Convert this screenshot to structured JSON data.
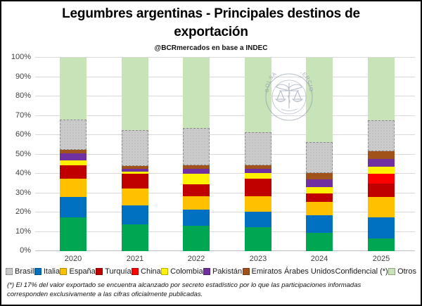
{
  "title": "Legumbres argentinas - Principales destinos de exportación",
  "subtitle": "@BCRmercados en base a INDEC",
  "footnote": "(*) El 17% del valor exportado se encuentra alcanzado por secreto estadístico por lo que las participaciones informadas corresponden exclusivamente a las cifras oficialmente publicadas.",
  "watermark": {
    "arc_text": "BOLSA DE COMERCIO DE R",
    "color": "#8D98AC"
  },
  "chart_data": {
    "type": "bar",
    "stacked": true,
    "title": "Legumbres argentinas - Principales destinos de exportación",
    "subtitle": "@BCRmercados en base a INDEC",
    "categories": [
      "2020",
      "2021",
      "2022",
      "2023",
      "2024",
      "2025"
    ],
    "y_ticks": [
      "0%",
      "10%",
      "20%",
      "30%",
      "40%",
      "50%",
      "60%",
      "70%",
      "80%",
      "90%",
      "100%"
    ],
    "ylim": [
      0,
      100
    ],
    "grid": true,
    "legend_position": "bottom",
    "unit": "%",
    "series": [
      {
        "id": "brasil",
        "name": "Brasil",
        "color": "#00A651",
        "values": [
          17.5,
          14.0,
          13.0,
          12.5,
          9.5,
          6.5
        ]
      },
      {
        "id": "italia",
        "name": "Italia",
        "color": "#0070C0",
        "values": [
          10.5,
          9.5,
          8.5,
          8.0,
          9.0,
          11.0
        ]
      },
      {
        "id": "espana",
        "name": "España",
        "color": "#FFC000",
        "values": [
          9.5,
          9.0,
          7.0,
          8.0,
          7.0,
          10.5
        ]
      },
      {
        "id": "turquia",
        "name": "Turquía",
        "color": "#C00000",
        "values": [
          7.0,
          7.5,
          6.0,
          9.0,
          4.5,
          7.0
        ]
      },
      {
        "id": "china",
        "name": "China",
        "color": "#FF0000",
        "values": [
          0,
          0,
          0,
          0,
          0,
          5.0
        ]
      },
      {
        "id": "colombia",
        "name": "Colombia",
        "color": "#FFF100",
        "values": [
          2.5,
          1.0,
          5.5,
          3.0,
          3.0,
          3.5
        ]
      },
      {
        "id": "pakistan",
        "name": "Pakistán",
        "color": "#7030A0",
        "values": [
          3.5,
          1.5,
          2.5,
          2.0,
          4.0,
          4.0
        ]
      },
      {
        "id": "emiratos-arabes-unidos",
        "name": "Emiratos Árabes Unidos",
        "color": "#A0521A",
        "values": [
          2.0,
          1.5,
          2.0,
          2.0,
          3.5,
          4.0
        ]
      },
      {
        "id": "confidencial",
        "name": "Confidencial (*)",
        "color": "#CBCBCB",
        "pattern": true,
        "values": [
          15.5,
          18.5,
          19.0,
          17.0,
          16.0,
          16.0
        ]
      },
      {
        "id": "otros",
        "name": "Otros",
        "color": "#C9E3B8",
        "values": [
          32.0,
          37.5,
          36.5,
          38.5,
          43.5,
          32.5
        ]
      }
    ]
  }
}
